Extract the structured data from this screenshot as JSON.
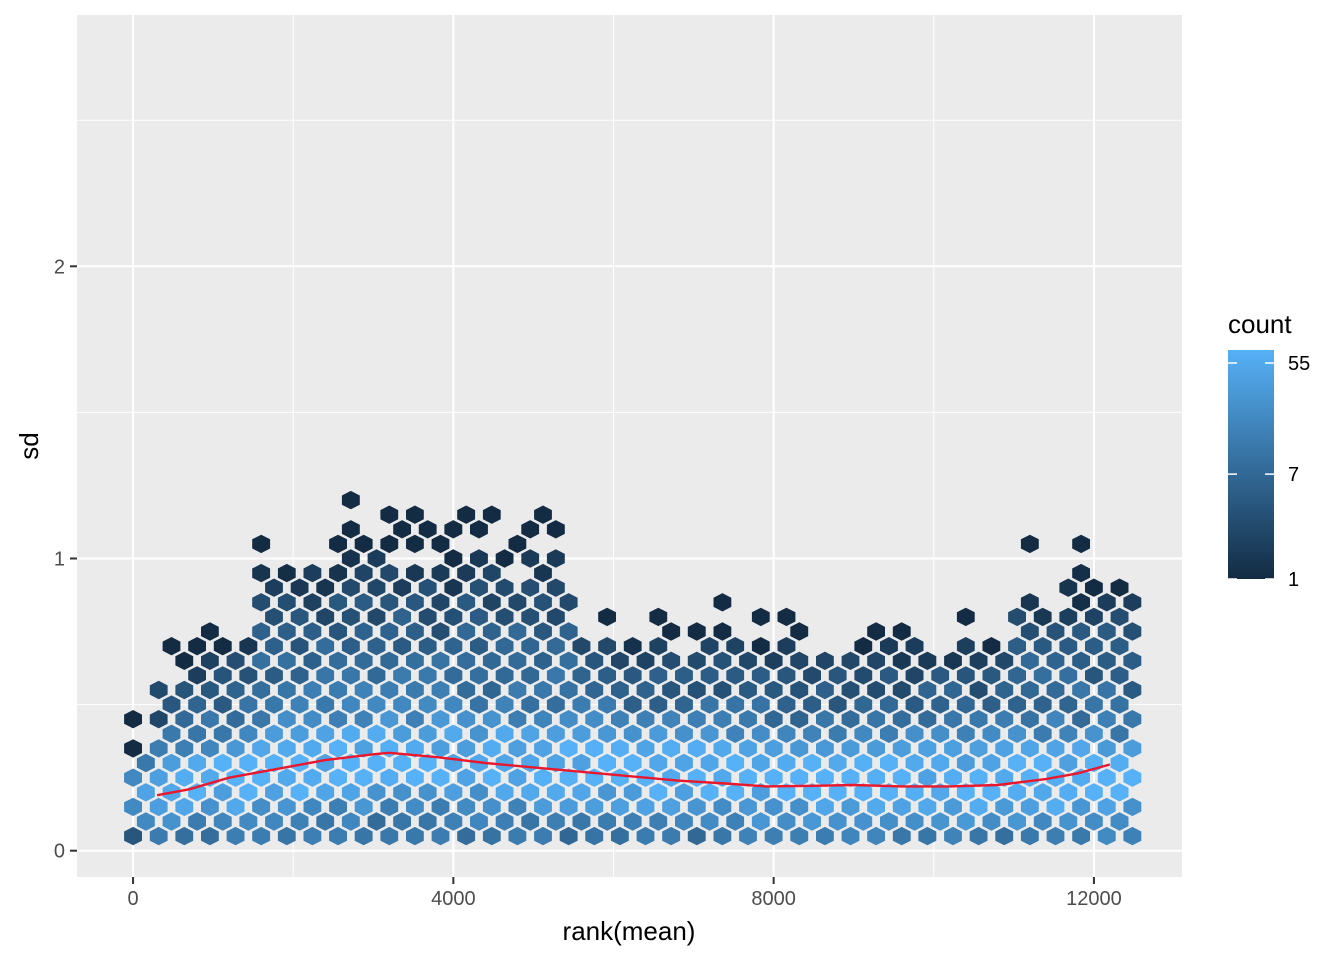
{
  "chart_data": {
    "type": "hexbin",
    "xlabel": "rank(mean)",
    "ylabel": "sd",
    "xlim": [
      -700,
      13100
    ],
    "ylim": [
      -0.09,
      2.86
    ],
    "x_ticks": [
      0,
      4000,
      8000,
      12000
    ],
    "x_tick_labels": [
      "0",
      "4000",
      "8000",
      "12000"
    ],
    "y_ticks": [
      0,
      1,
      2
    ],
    "y_tick_labels": [
      "0",
      "1",
      "2"
    ],
    "grid": true,
    "legend": {
      "title": "count",
      "position": "right",
      "scale": "log",
      "ticks": [
        1,
        7,
        55
      ],
      "tick_labels": [
        "1",
        "7",
        "55"
      ],
      "range": [
        1,
        70
      ]
    },
    "colors": {
      "panel_bg": "#ebebeb",
      "grid": "#ffffff",
      "low": "#132b43",
      "high": "#56b1f7",
      "smooth_line": "#e8182e"
    },
    "smooth_line": {
      "x": [
        300,
        700,
        1200,
        1800,
        2400,
        3000,
        3200,
        3800,
        4400,
        5000,
        5600,
        6200,
        6800,
        7400,
        7900,
        8500,
        9000,
        9600,
        10200,
        10800,
        11400,
        11800,
        12200
      ],
      "y": [
        0.19,
        0.21,
        0.25,
        0.28,
        0.31,
        0.33,
        0.335,
        0.32,
        0.3,
        0.285,
        0.27,
        0.255,
        0.24,
        0.23,
        0.22,
        0.222,
        0.225,
        0.22,
        0.22,
        0.225,
        0.245,
        0.265,
        0.295
      ]
    }
  }
}
